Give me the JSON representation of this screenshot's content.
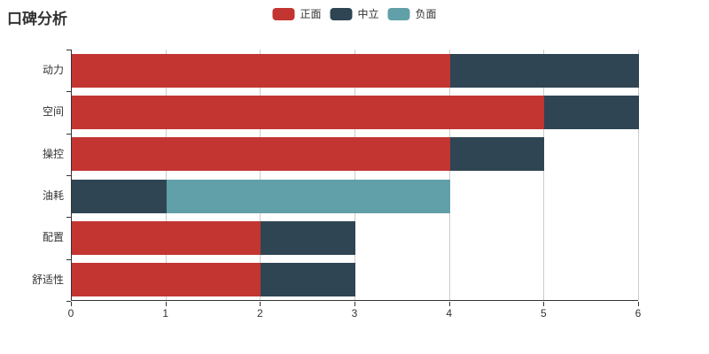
{
  "title": "口碑分析",
  "legend": {
    "items": [
      {
        "label": "正面",
        "color": "#c23531"
      },
      {
        "label": "中立",
        "color": "#2f4554"
      },
      {
        "label": "负面",
        "color": "#61a0a8"
      }
    ],
    "position": "top-center"
  },
  "colors": {
    "positive": "#c23531",
    "neutral": "#2f4554",
    "negative": "#61a0a8",
    "axis": "#333333",
    "gridline": "#cccccc",
    "background": "#ffffff",
    "text": "#333333"
  },
  "chart_data": {
    "type": "bar",
    "orientation": "horizontal",
    "stacked": true,
    "title": "口碑分析",
    "categories": [
      "动力",
      "空间",
      "操控",
      "油耗",
      "配置",
      "舒适性"
    ],
    "series": [
      {
        "name": "正面",
        "color": "#c23531",
        "values": [
          4,
          5,
          4,
          0,
          2,
          2
        ]
      },
      {
        "name": "中立",
        "color": "#2f4554",
        "values": [
          2,
          1,
          1,
          1,
          1,
          1
        ]
      },
      {
        "name": "负面",
        "color": "#61a0a8",
        "values": [
          0,
          0,
          0,
          3,
          0,
          0
        ]
      }
    ],
    "totals": [
      6,
      6,
      5,
      4,
      3,
      3
    ],
    "x_ticks": [
      "0",
      "1",
      "2",
      "3",
      "4",
      "5",
      "6"
    ],
    "xlim": [
      0,
      6
    ],
    "xlabel": "",
    "ylabel": "",
    "grid": true,
    "legend_position": "top-center"
  }
}
